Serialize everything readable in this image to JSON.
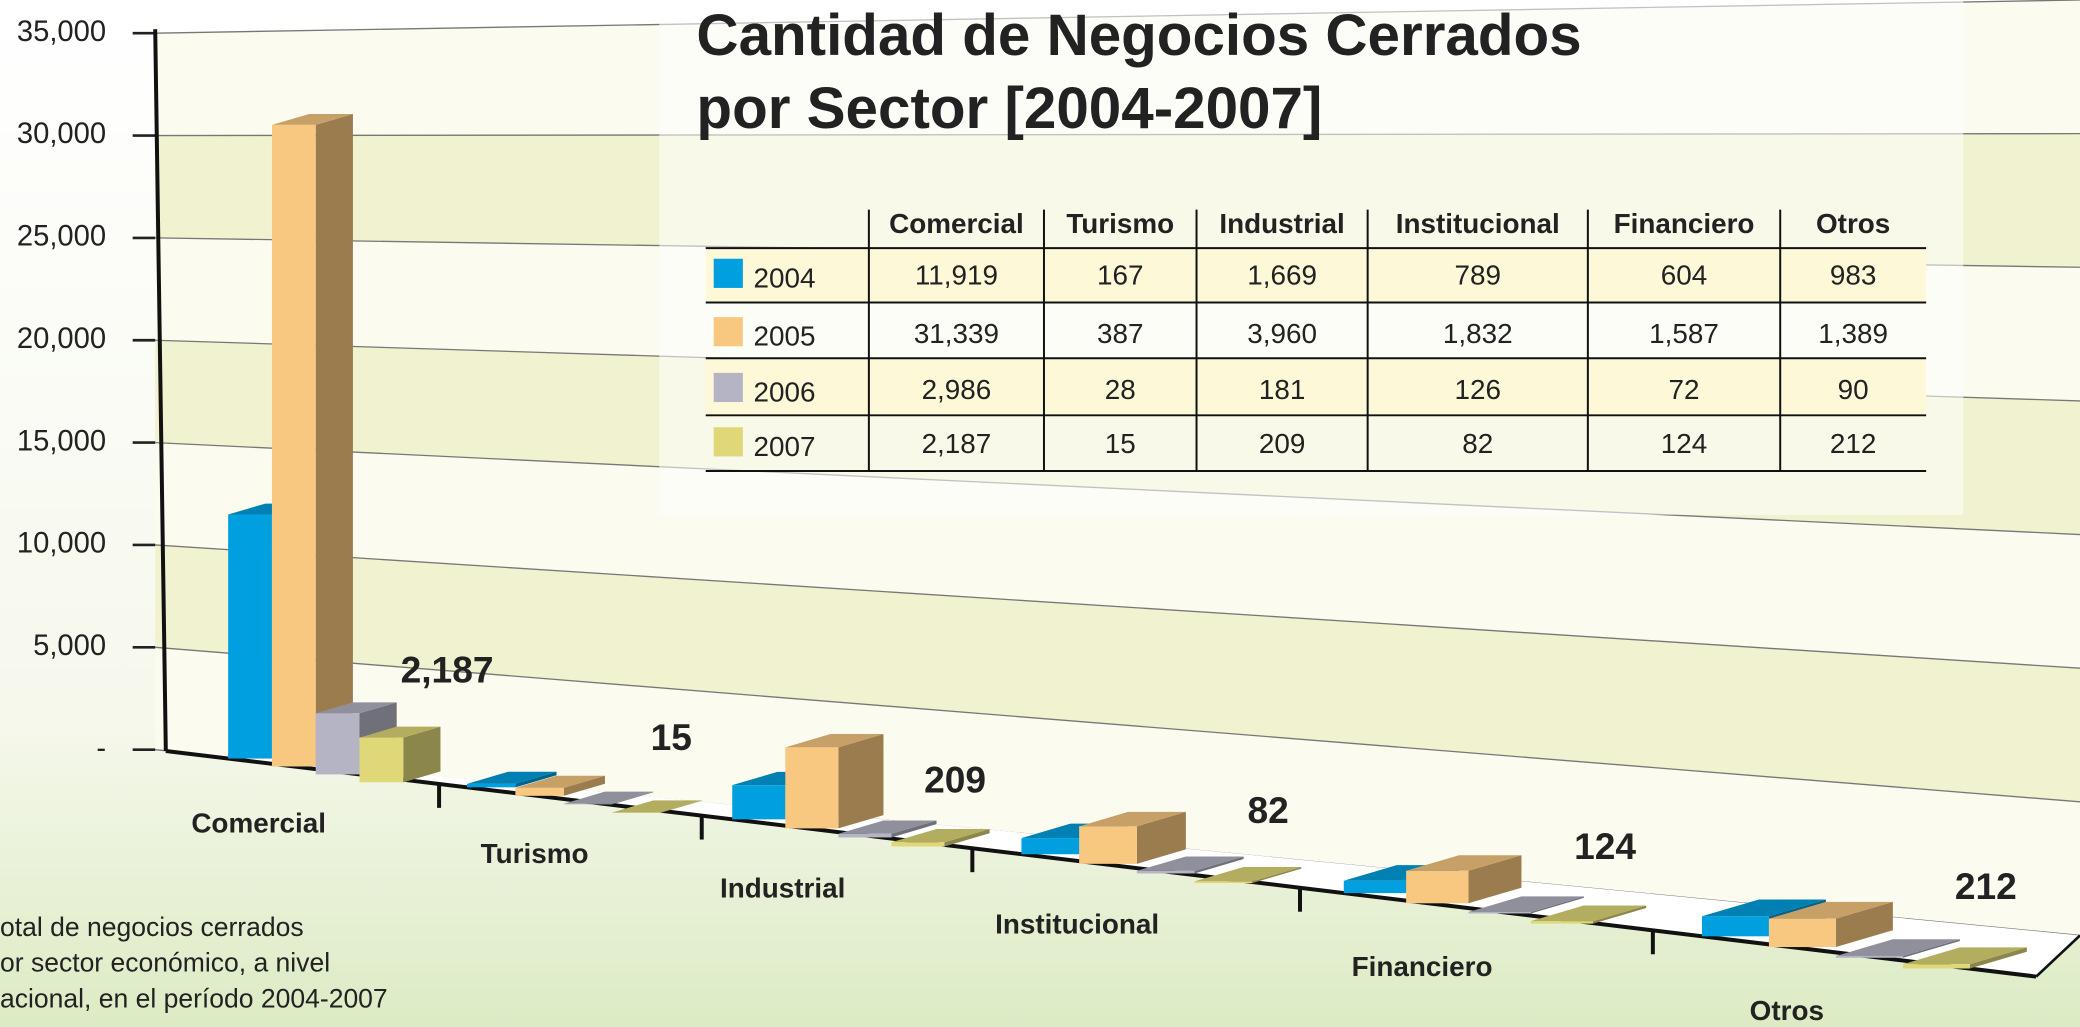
{
  "chart_data": {
    "type": "bar3d",
    "title": [
      "Cantidad de Negocios Cerrados",
      "por Sector [2004-2007]"
    ],
    "categories": [
      "Comercial",
      "Turismo",
      "Industrial",
      "Institucional",
      "Financiero",
      "Otros"
    ],
    "series": [
      {
        "name": "2004",
        "color": "#00a0e0",
        "values": [
          11919,
          167,
          1669,
          789,
          604,
          983
        ],
        "value_labels": [
          "11,919",
          "167",
          "1,669",
          "789",
          "604",
          "983"
        ]
      },
      {
        "name": "2005",
        "color": "#f8c880",
        "values": [
          31339,
          387,
          3960,
          1832,
          1587,
          1389
        ],
        "value_labels": [
          "31,339",
          "387",
          "3,960",
          "1,832",
          "1,587",
          "1,389"
        ]
      },
      {
        "name": "2006",
        "color": "#b4b4c4",
        "values": [
          2986,
          28,
          181,
          126,
          72,
          90
        ],
        "value_labels": [
          "2,986",
          "28",
          "181",
          "126",
          "72",
          "90"
        ]
      },
      {
        "name": "2007",
        "color": "#e0d878",
        "values": [
          2187,
          15,
          209,
          82,
          124,
          212
        ],
        "value_labels": [
          "2,187",
          "15",
          "209",
          "82",
          "124",
          "212"
        ]
      }
    ],
    "ylim": [
      0,
      35000
    ],
    "yticks": [
      {
        "value": 0,
        "label": "-"
      },
      {
        "value": 5000,
        "label": "5,000"
      },
      {
        "value": 10000,
        "label": "10,000"
      },
      {
        "value": 15000,
        "label": "15,000"
      },
      {
        "value": 20000,
        "label": "20,000"
      },
      {
        "value": 25000,
        "label": "25,000"
      },
      {
        "value": 30000,
        "label": "30,000"
      },
      {
        "value": 35000,
        "label": "35,000"
      }
    ],
    "grid": true,
    "annotation": [
      "otal de negocios cerrados",
      "or sector económico, a nivel",
      "acional, en el período 2004-2007"
    ]
  }
}
